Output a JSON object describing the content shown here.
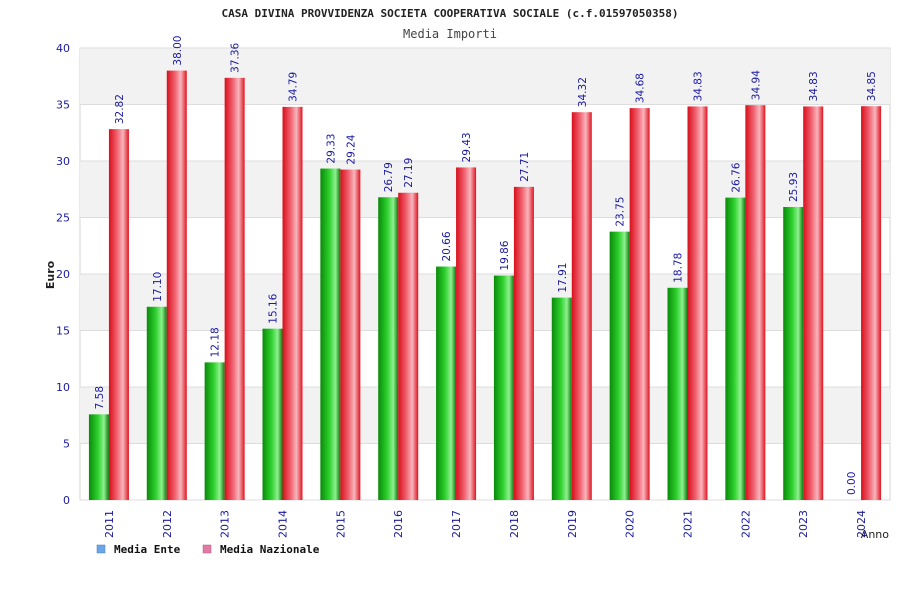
{
  "chart_data": {
    "type": "bar",
    "title": "CASA DIVINA PROVVIDENZA SOCIETA COOPERATIVA SOCIALE (c.f.01597050358)",
    "subtitle": "Media Importi",
    "xlabel": "Anno",
    "ylabel": "Euro",
    "ylim": [
      0,
      40
    ],
    "yticks": [
      0,
      5,
      10,
      15,
      20,
      25,
      30,
      35,
      40
    ],
    "grid": true,
    "legend_position": "bottom-left",
    "categories": [
      "2011",
      "2012",
      "2013",
      "2014",
      "2015",
      "2016",
      "2017",
      "2018",
      "2019",
      "2020",
      "2021",
      "2022",
      "2023",
      "2024"
    ],
    "series": [
      {
        "name": "Media Ente",
        "color": "#22aa22",
        "legend_color": "#6aa6e6",
        "values": [
          7.58,
          17.1,
          12.18,
          15.16,
          29.33,
          26.79,
          20.66,
          19.86,
          17.91,
          23.75,
          18.78,
          26.76,
          25.93,
          0.0
        ],
        "labels": [
          "7.58",
          "17.10",
          "12.18",
          "15.16",
          "29.33",
          "26.79",
          "20.66",
          "19.86",
          "17.91",
          "23.75",
          "18.78",
          "26.76",
          "25.93",
          "0.00"
        ]
      },
      {
        "name": "Media Nazionale",
        "color": "#ee2233",
        "legend_color": "#e27aa6",
        "values": [
          32.82,
          38.0,
          37.36,
          34.79,
          29.24,
          27.19,
          29.43,
          27.71,
          34.32,
          34.68,
          34.83,
          34.94,
          34.83,
          34.85
        ],
        "labels": [
          "32.82",
          "38.00",
          "37.36",
          "34.79",
          "29.24",
          "27.19",
          "29.43",
          "27.71",
          "34.32",
          "34.68",
          "34.83",
          "34.94",
          "34.83",
          "34.85"
        ]
      }
    ]
  }
}
